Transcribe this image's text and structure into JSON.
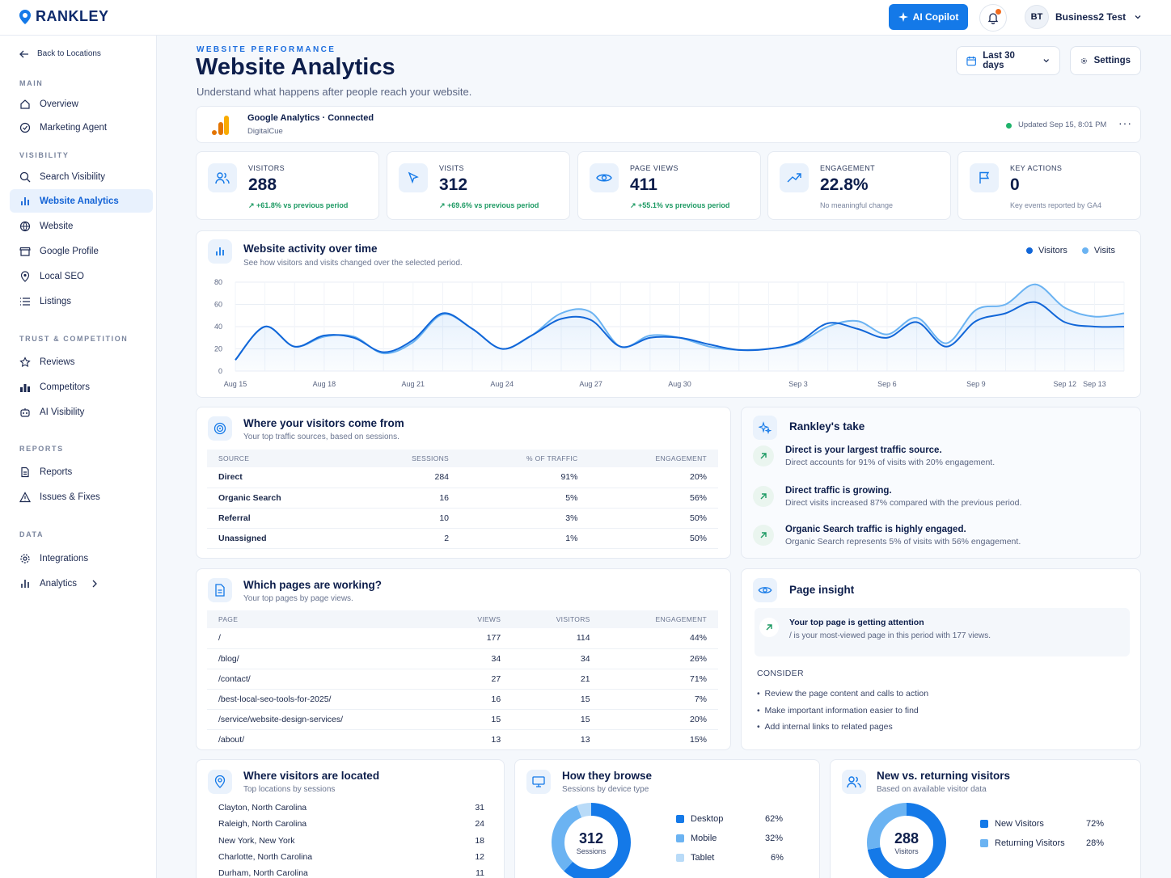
{
  "brand": {
    "name": "RANKLEY",
    "primary": "#1479e8",
    "dark": "#0d2a6b"
  },
  "topbar": {
    "copilot": "AI Copilot",
    "avatar": "BT",
    "account": "Business2 Test"
  },
  "sidebar": {
    "back": "Back to Locations",
    "sections": {
      "main": "MAIN",
      "visibility": "VISIBILITY",
      "trust": "TRUST & COMPETITION",
      "reports": "REPORTS",
      "data": "DATA"
    },
    "items": {
      "overview": "Overview",
      "marketing": "Marketing Agent",
      "search_visibility": "Search Visibility",
      "website_analytics": "Website Analytics",
      "website": "Website",
      "google_profile": "Google Profile",
      "local_seo": "Local SEO",
      "listings": "Listings",
      "reviews": "Reviews",
      "competitors": "Competitors",
      "ai_visibility": "AI Visibility",
      "reports": "Reports",
      "issues": "Issues & Fixes",
      "integrations": "Integrations",
      "analytics": "Analytics"
    }
  },
  "header": {
    "kicker": "WEBSITE PERFORMANCE",
    "title": "Website Analytics",
    "subtitle": "Understand what happens after people reach your website.",
    "range": "Last 30 days",
    "settings": "Settings"
  },
  "ga": {
    "title": "Google Analytics · Connected",
    "account": "DigitalCue",
    "updated": "Updated Sep 15, 8:01 PM"
  },
  "stats": [
    {
      "label": "VISITORS",
      "value": "288",
      "change": "+61.8% vs previous period"
    },
    {
      "label": "VISITS",
      "value": "312",
      "change": "+69.6% vs previous period"
    },
    {
      "label": "PAGE VIEWS",
      "value": "411",
      "change": "+55.1% vs previous period"
    },
    {
      "label": "ENGAGEMENT",
      "value": "22.8%",
      "change": "No meaningful change"
    },
    {
      "label": "KEY ACTIONS",
      "value": "0",
      "change": "Key events reported by GA4"
    }
  ],
  "activity": {
    "title": "Website activity over time",
    "subtitle": "See how visitors and visits changed over the selected period.",
    "legend": [
      "Visitors",
      "Visits"
    ]
  },
  "chart_data": {
    "type": "line",
    "x": [
      "Aug 15",
      "Aug 16",
      "Aug 17",
      "Aug 18",
      "Aug 19",
      "Aug 20",
      "Aug 21",
      "Aug 22",
      "Aug 23",
      "Aug 24",
      "Aug 25",
      "Aug 26",
      "Aug 27",
      "Aug 28",
      "Aug 29",
      "Aug 30",
      "Aug 31",
      "Sep 1",
      "Sep 2",
      "Sep 3",
      "Sep 4",
      "Sep 5",
      "Sep 6",
      "Sep 7",
      "Sep 8",
      "Sep 9",
      "Sep 10",
      "Sep 11",
      "Sep 12",
      "Sep 13",
      "Sep 14"
    ],
    "tick_labels": [
      "Aug 15",
      "Aug 18",
      "Aug 21",
      "Aug 24",
      "Aug 27",
      "Aug 30",
      "Sep 3",
      "Sep 6",
      "Sep 9",
      "Sep 12",
      "Sep 13"
    ],
    "ylim": [
      0,
      80
    ],
    "yticks": [
      0,
      20,
      40,
      60,
      80
    ],
    "grid": true,
    "legend_position": "top-right",
    "series": [
      {
        "name": "Visitors",
        "color": "#1166d8",
        "values": [
          10,
          40,
          22,
          32,
          30,
          17,
          28,
          52,
          38,
          20,
          32,
          47,
          46,
          22,
          30,
          30,
          24,
          19,
          20,
          26,
          43,
          38,
          30,
          44,
          22,
          45,
          52,
          62,
          44,
          40,
          40
        ]
      },
      {
        "name": "Visits",
        "color": "#6bb3f2",
        "values": [
          10,
          40,
          22,
          31,
          31,
          16,
          26,
          51,
          38,
          20,
          32,
          52,
          53,
          22,
          32,
          30,
          22,
          19,
          20,
          25,
          40,
          45,
          33,
          48,
          25,
          55,
          60,
          78,
          57,
          49,
          52
        ]
      }
    ]
  },
  "sources": {
    "title": "Where your visitors come from",
    "subtitle": "Your top traffic sources, based on sessions.",
    "headers": [
      "SOURCE",
      "SESSIONS",
      "% OF TRAFFIC",
      "ENGAGEMENT"
    ],
    "rows": [
      [
        "Direct",
        "284",
        "91%",
        "20%"
      ],
      [
        "Organic Search",
        "16",
        "5%",
        "56%"
      ],
      [
        "Referral",
        "10",
        "3%",
        "50%"
      ],
      [
        "Unassigned",
        "2",
        "1%",
        "50%"
      ]
    ]
  },
  "take": {
    "title": "Rankley's take",
    "items": [
      {
        "h": "Direct is your largest traffic source.",
        "t": "Direct accounts for 91% of visits with 20% engagement."
      },
      {
        "h": "Direct traffic is growing.",
        "t": "Direct visits increased 87% compared with the previous period."
      },
      {
        "h": "Organic Search traffic is highly engaged.",
        "t": "Organic Search represents 5% of visits with 56% engagement."
      }
    ]
  },
  "pages": {
    "title": "Which pages are working?",
    "subtitle": "Your top pages by page views.",
    "headers": [
      "PAGE",
      "VIEWS",
      "VISITORS",
      "ENGAGEMENT"
    ],
    "rows": [
      [
        "/",
        "177",
        "114",
        "44%"
      ],
      [
        "/blog/",
        "34",
        "34",
        "26%"
      ],
      [
        "/contact/",
        "27",
        "21",
        "71%"
      ],
      [
        "/best-local-seo-tools-for-2025/",
        "16",
        "15",
        "7%"
      ],
      [
        "/service/website-design-services/",
        "15",
        "15",
        "20%"
      ],
      [
        "/about/",
        "13",
        "13",
        "15%"
      ]
    ]
  },
  "insight": {
    "title": "Page insight",
    "h": "Your top page is getting attention",
    "t": "/ is your most-viewed page in this period with 177 views.",
    "consider": "CONSIDER",
    "bullets": [
      "Review the page content and calls to action",
      "Make important information easier to find",
      "Add internal links to related pages"
    ]
  },
  "locations": {
    "title": "Where visitors are located",
    "subtitle": "Top locations by sessions",
    "rows": [
      [
        "Clayton, North Carolina",
        "31"
      ],
      [
        "Raleigh, North Carolina",
        "24"
      ],
      [
        "New York, New York",
        "18"
      ],
      [
        "Charlotte, North Carolina",
        "12"
      ],
      [
        "Durham, North Carolina",
        "11"
      ]
    ]
  },
  "devices": {
    "title": "How they browse",
    "subtitle": "Sessions by device type",
    "center": "312",
    "center_label": "Sessions",
    "items": [
      {
        "name": "Desktop",
        "pct": "62%",
        "value": 62,
        "color": "#1479e8"
      },
      {
        "name": "Mobile",
        "pct": "32%",
        "value": 32,
        "color": "#6bb3f2"
      },
      {
        "name": "Tablet",
        "pct": "6%",
        "value": 6,
        "color": "#b9dbf8"
      }
    ]
  },
  "returning": {
    "title": "New vs. returning visitors",
    "subtitle": "Based on available visitor data",
    "center": "288",
    "center_label": "Visitors",
    "items": [
      {
        "name": "New Visitors",
        "pct": "72%",
        "value": 72,
        "color": "#1479e8"
      },
      {
        "name": "Returning Visitors",
        "pct": "28%",
        "value": 28,
        "color": "#6bb3f2"
      }
    ]
  }
}
